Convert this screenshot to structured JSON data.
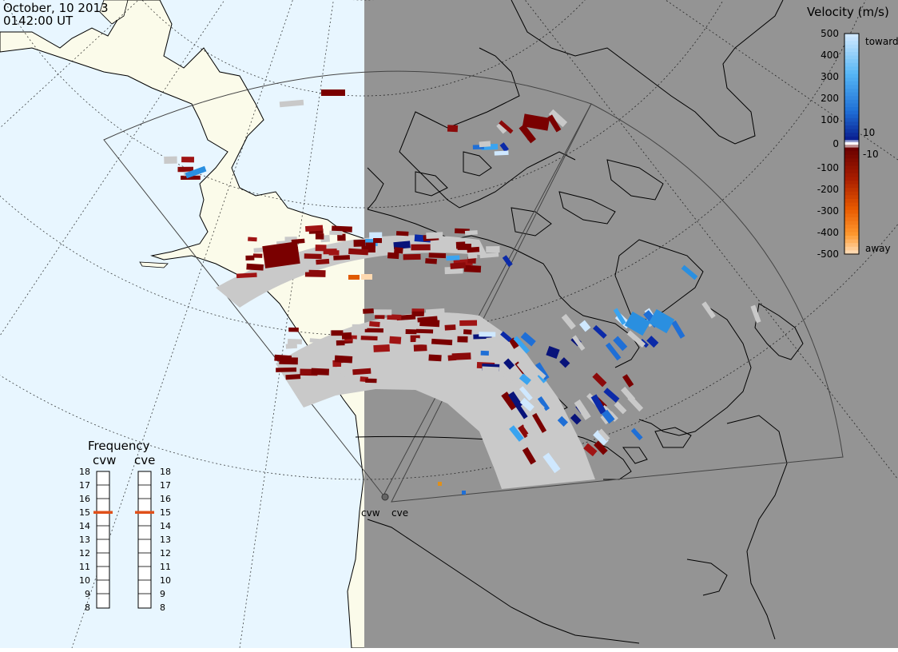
{
  "header": {
    "date": "October, 10 2013",
    "time": "0142:00 UT"
  },
  "velocity_scale": {
    "title": "Velocity (m/s)",
    "ticks": [
      "500",
      "400",
      "300",
      "200",
      "100",
      "10",
      "0",
      "-10",
      "-100",
      "-200",
      "-300",
      "-400",
      "-500"
    ],
    "toward_label": "toward",
    "away_label": "away",
    "colors": {
      "toward_strong": "#cfe8ff",
      "toward_mid": "#2a8fe0",
      "toward_weak": "#08137a",
      "away_weak": "#7a0000",
      "away_mid": "#e05a00",
      "away_strong": "#ffd9b0",
      "ground_scatter": "#c9c9c9",
      "night": "#949494",
      "ocean_day": "#e8f6ff",
      "land_day": "#fbfbea"
    }
  },
  "frequency_panel": {
    "title": "Frequency",
    "radars": [
      {
        "name": "cvw",
        "value_mhz": 15
      },
      {
        "name": "cve",
        "value_mhz": 15
      }
    ],
    "scale_labels": [
      "18",
      "17",
      "16",
      "15",
      "14",
      "13",
      "12",
      "11",
      "10",
      "9",
      "8"
    ],
    "indicator_color": "#e0501a"
  },
  "map": {
    "radar_labels": {
      "cvw": "cvw",
      "cve": "cve"
    }
  }
}
